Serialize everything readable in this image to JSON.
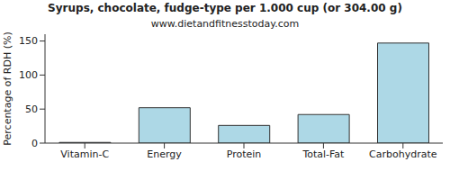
{
  "chart_data": {
    "type": "bar",
    "title": "Syrups, chocolate, fudge-type per 1.000 cup (or 304.00 g)",
    "subtitle": "www.dietandfitnesstoday.com",
    "y_label": "Percentage of RDH (%)",
    "categories": [
      "Vitamin-C",
      "Energy",
      "Protein",
      "Total-Fat",
      "Carbohydrate"
    ],
    "values": [
      1,
      52,
      26,
      42,
      147
    ],
    "color": "#add8e6",
    "ylim": [
      0,
      160
    ],
    "yticks": [
      0,
      50,
      100,
      150
    ],
    "grid": false
  }
}
